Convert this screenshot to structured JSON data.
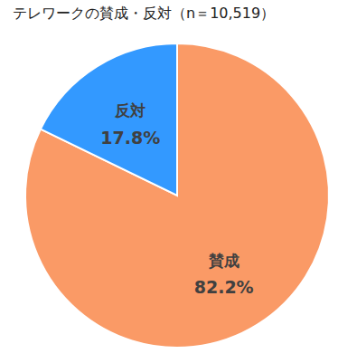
{
  "chart_data": {
    "type": "pie",
    "title": "テレワークの賛成・反対（n＝10,519）",
    "categories": [
      "賛成",
      "反対"
    ],
    "values": [
      82.2,
      17.8
    ],
    "value_labels": [
      "82.2%",
      "17.8%"
    ],
    "colors": [
      "#FA9A66",
      "#3399FF"
    ],
    "data_labels": true
  }
}
